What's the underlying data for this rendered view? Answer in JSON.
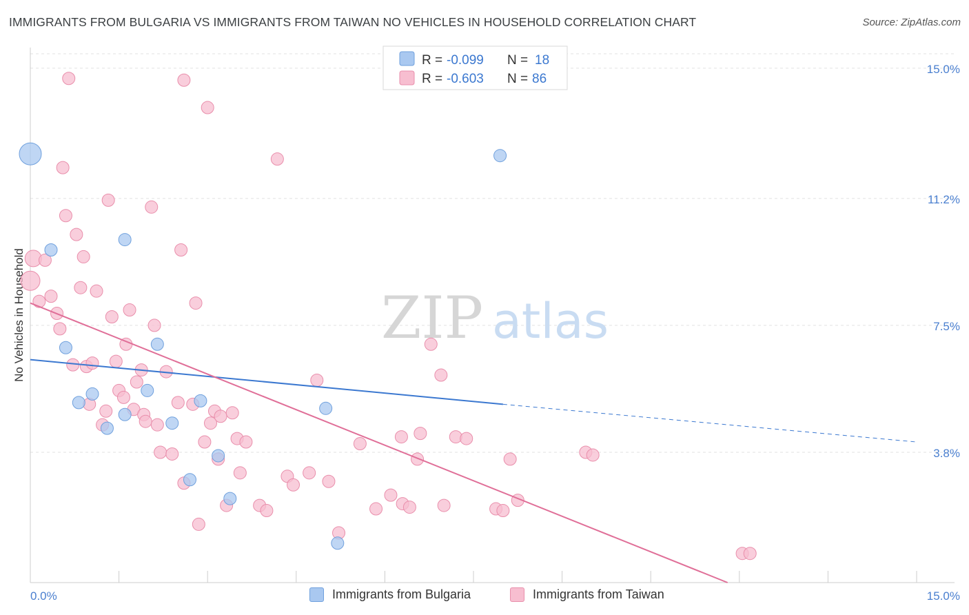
{
  "title": "IMMIGRANTS FROM BULGARIA VS IMMIGRANTS FROM TAIWAN NO VEHICLES IN HOUSEHOLD CORRELATION CHART",
  "source": "Source: ZipAtlas.com",
  "watermark": {
    "zip": "ZIP",
    "atlas": "atlas"
  },
  "legend_stats": [
    {
      "r_label": "R =",
      "r_value": "-0.099",
      "n_label": "N =",
      "n_value": "18"
    },
    {
      "r_label": "R =",
      "r_value": "-0.603",
      "n_label": "N =",
      "n_value": "86"
    }
  ],
  "legend_bottom": [
    "Immigrants from Bulgaria",
    "Immigrants from Taiwan"
  ],
  "colors": {
    "bulgaria_fill": "#a9c8f0",
    "bulgaria_stroke": "#6fa0dd",
    "bulgaria_line": "#3b78d0",
    "taiwan_fill": "#f7bed0",
    "taiwan_stroke": "#e98eab",
    "taiwan_line": "#e06f98",
    "tick_label": "#4a7fcf",
    "grid": "#e2e2e2"
  },
  "chart_data": {
    "type": "scatter",
    "title": "IMMIGRANTS FROM BULGARIA VS IMMIGRANTS FROM TAIWAN NO VEHICLES IN HOUSEHOLD CORRELATION CHART",
    "xlabel": "",
    "ylabel": "No Vehicles in Household",
    "xlim": [
      0,
      15
    ],
    "ylim": [
      0,
      15.6
    ],
    "x_tick_labels": [
      "0.0%",
      "15.0%"
    ],
    "y_ticks": [
      3.8,
      7.5,
      11.2,
      15.0
    ],
    "y_tick_labels": [
      "3.8%",
      "7.5%",
      "11.2%",
      "15.0%"
    ],
    "grid": "horizontal dashed",
    "legend_position": "top-center",
    "series": [
      {
        "name": "Immigrants from Bulgaria",
        "points": [
          [
            0.0,
            12.5,
            16
          ],
          [
            0.35,
            9.7,
            9
          ],
          [
            0.6,
            6.85,
            9
          ],
          [
            0.82,
            5.25,
            9
          ],
          [
            1.05,
            5.5,
            9
          ],
          [
            1.3,
            4.5,
            9
          ],
          [
            1.6,
            4.9,
            9
          ],
          [
            1.6,
            10.0,
            9
          ],
          [
            1.98,
            5.6,
            9
          ],
          [
            2.15,
            6.95,
            9
          ],
          [
            2.4,
            4.65,
            9
          ],
          [
            2.7,
            3.0,
            9
          ],
          [
            2.88,
            5.3,
            9
          ],
          [
            3.18,
            3.7,
            9
          ],
          [
            3.38,
            2.45,
            9
          ],
          [
            5.0,
            5.08,
            9
          ],
          [
            5.2,
            1.15,
            9
          ],
          [
            7.95,
            12.45,
            9
          ]
        ],
        "trend": {
          "x": [
            0.0,
            8.0
          ],
          "y": [
            6.5,
            5.2
          ],
          "dashed_to": [
            15.0,
            4.1
          ]
        }
      },
      {
        "name": "Immigrants from Taiwan",
        "points": [
          [
            0.0,
            8.8,
            14
          ],
          [
            0.05,
            9.45,
            12
          ],
          [
            0.15,
            8.2,
            9
          ],
          [
            0.25,
            9.4,
            9
          ],
          [
            0.35,
            8.35,
            9
          ],
          [
            0.45,
            7.85,
            9
          ],
          [
            0.5,
            7.4,
            9
          ],
          [
            0.55,
            12.1,
            9
          ],
          [
            0.6,
            10.7,
            9
          ],
          [
            0.65,
            14.7,
            9
          ],
          [
            0.72,
            6.35,
            9
          ],
          [
            0.78,
            10.15,
            9
          ],
          [
            0.85,
            8.6,
            9
          ],
          [
            0.9,
            9.5,
            9
          ],
          [
            0.95,
            6.3,
            9
          ],
          [
            1.0,
            5.2,
            9
          ],
          [
            1.05,
            6.4,
            9
          ],
          [
            1.12,
            8.5,
            9
          ],
          [
            1.22,
            4.6,
            9
          ],
          [
            1.28,
            5.0,
            9
          ],
          [
            1.32,
            11.15,
            9
          ],
          [
            1.38,
            7.75,
            9
          ],
          [
            1.45,
            6.45,
            9
          ],
          [
            1.5,
            5.6,
            9
          ],
          [
            1.58,
            5.4,
            9
          ],
          [
            1.62,
            6.95,
            9
          ],
          [
            1.68,
            7.95,
            9
          ],
          [
            1.75,
            5.05,
            9
          ],
          [
            1.8,
            5.85,
            9
          ],
          [
            1.88,
            6.2,
            9
          ],
          [
            1.92,
            4.9,
            9
          ],
          [
            1.95,
            4.7,
            9
          ],
          [
            2.05,
            10.95,
            9
          ],
          [
            2.1,
            7.5,
            9
          ],
          [
            2.15,
            4.6,
            9
          ],
          [
            2.2,
            3.8,
            9
          ],
          [
            2.3,
            6.15,
            9
          ],
          [
            2.4,
            3.75,
            9
          ],
          [
            2.5,
            5.25,
            9
          ],
          [
            2.55,
            9.7,
            9
          ],
          [
            2.6,
            2.9,
            9
          ],
          [
            2.6,
            14.65,
            9
          ],
          [
            2.75,
            5.2,
            9
          ],
          [
            2.8,
            8.15,
            9
          ],
          [
            2.85,
            1.7,
            9
          ],
          [
            2.95,
            4.1,
            9
          ],
          [
            3.0,
            13.85,
            9
          ],
          [
            3.05,
            4.65,
            9
          ],
          [
            3.12,
            5.0,
            9
          ],
          [
            3.18,
            3.6,
            9
          ],
          [
            3.22,
            4.85,
            9
          ],
          [
            3.32,
            2.25,
            9
          ],
          [
            3.42,
            4.95,
            9
          ],
          [
            3.5,
            4.2,
            9
          ],
          [
            3.55,
            3.2,
            9
          ],
          [
            3.65,
            4.1,
            9
          ],
          [
            3.88,
            2.25,
            9
          ],
          [
            4.0,
            2.1,
            9
          ],
          [
            4.18,
            12.35,
            9
          ],
          [
            4.35,
            3.1,
            9
          ],
          [
            4.45,
            2.85,
            9
          ],
          [
            4.72,
            3.2,
            9
          ],
          [
            4.85,
            5.9,
            9
          ],
          [
            5.05,
            2.95,
            9
          ],
          [
            5.22,
            1.45,
            9
          ],
          [
            5.58,
            4.05,
            9
          ],
          [
            5.85,
            2.15,
            9
          ],
          [
            6.1,
            2.55,
            9
          ],
          [
            6.28,
            4.25,
            9
          ],
          [
            6.3,
            2.3,
            9
          ],
          [
            6.42,
            2.2,
            9
          ],
          [
            6.55,
            3.6,
            9
          ],
          [
            6.6,
            4.35,
            9
          ],
          [
            6.78,
            6.95,
            9
          ],
          [
            6.95,
            6.05,
            9
          ],
          [
            7.0,
            2.25,
            9
          ],
          [
            7.2,
            4.25,
            9
          ],
          [
            7.38,
            4.2,
            9
          ],
          [
            7.88,
            2.15,
            9
          ],
          [
            8.0,
            2.1,
            9
          ],
          [
            8.12,
            3.6,
            9
          ],
          [
            8.25,
            2.4,
            9
          ],
          [
            9.4,
            3.8,
            9
          ],
          [
            9.52,
            3.72,
            9
          ],
          [
            12.05,
            0.85,
            9
          ],
          [
            12.18,
            0.85,
            9
          ]
        ],
        "trend": {
          "x": [
            0.0,
            11.8
          ],
          "y": [
            8.15,
            0.0
          ]
        }
      }
    ]
  }
}
